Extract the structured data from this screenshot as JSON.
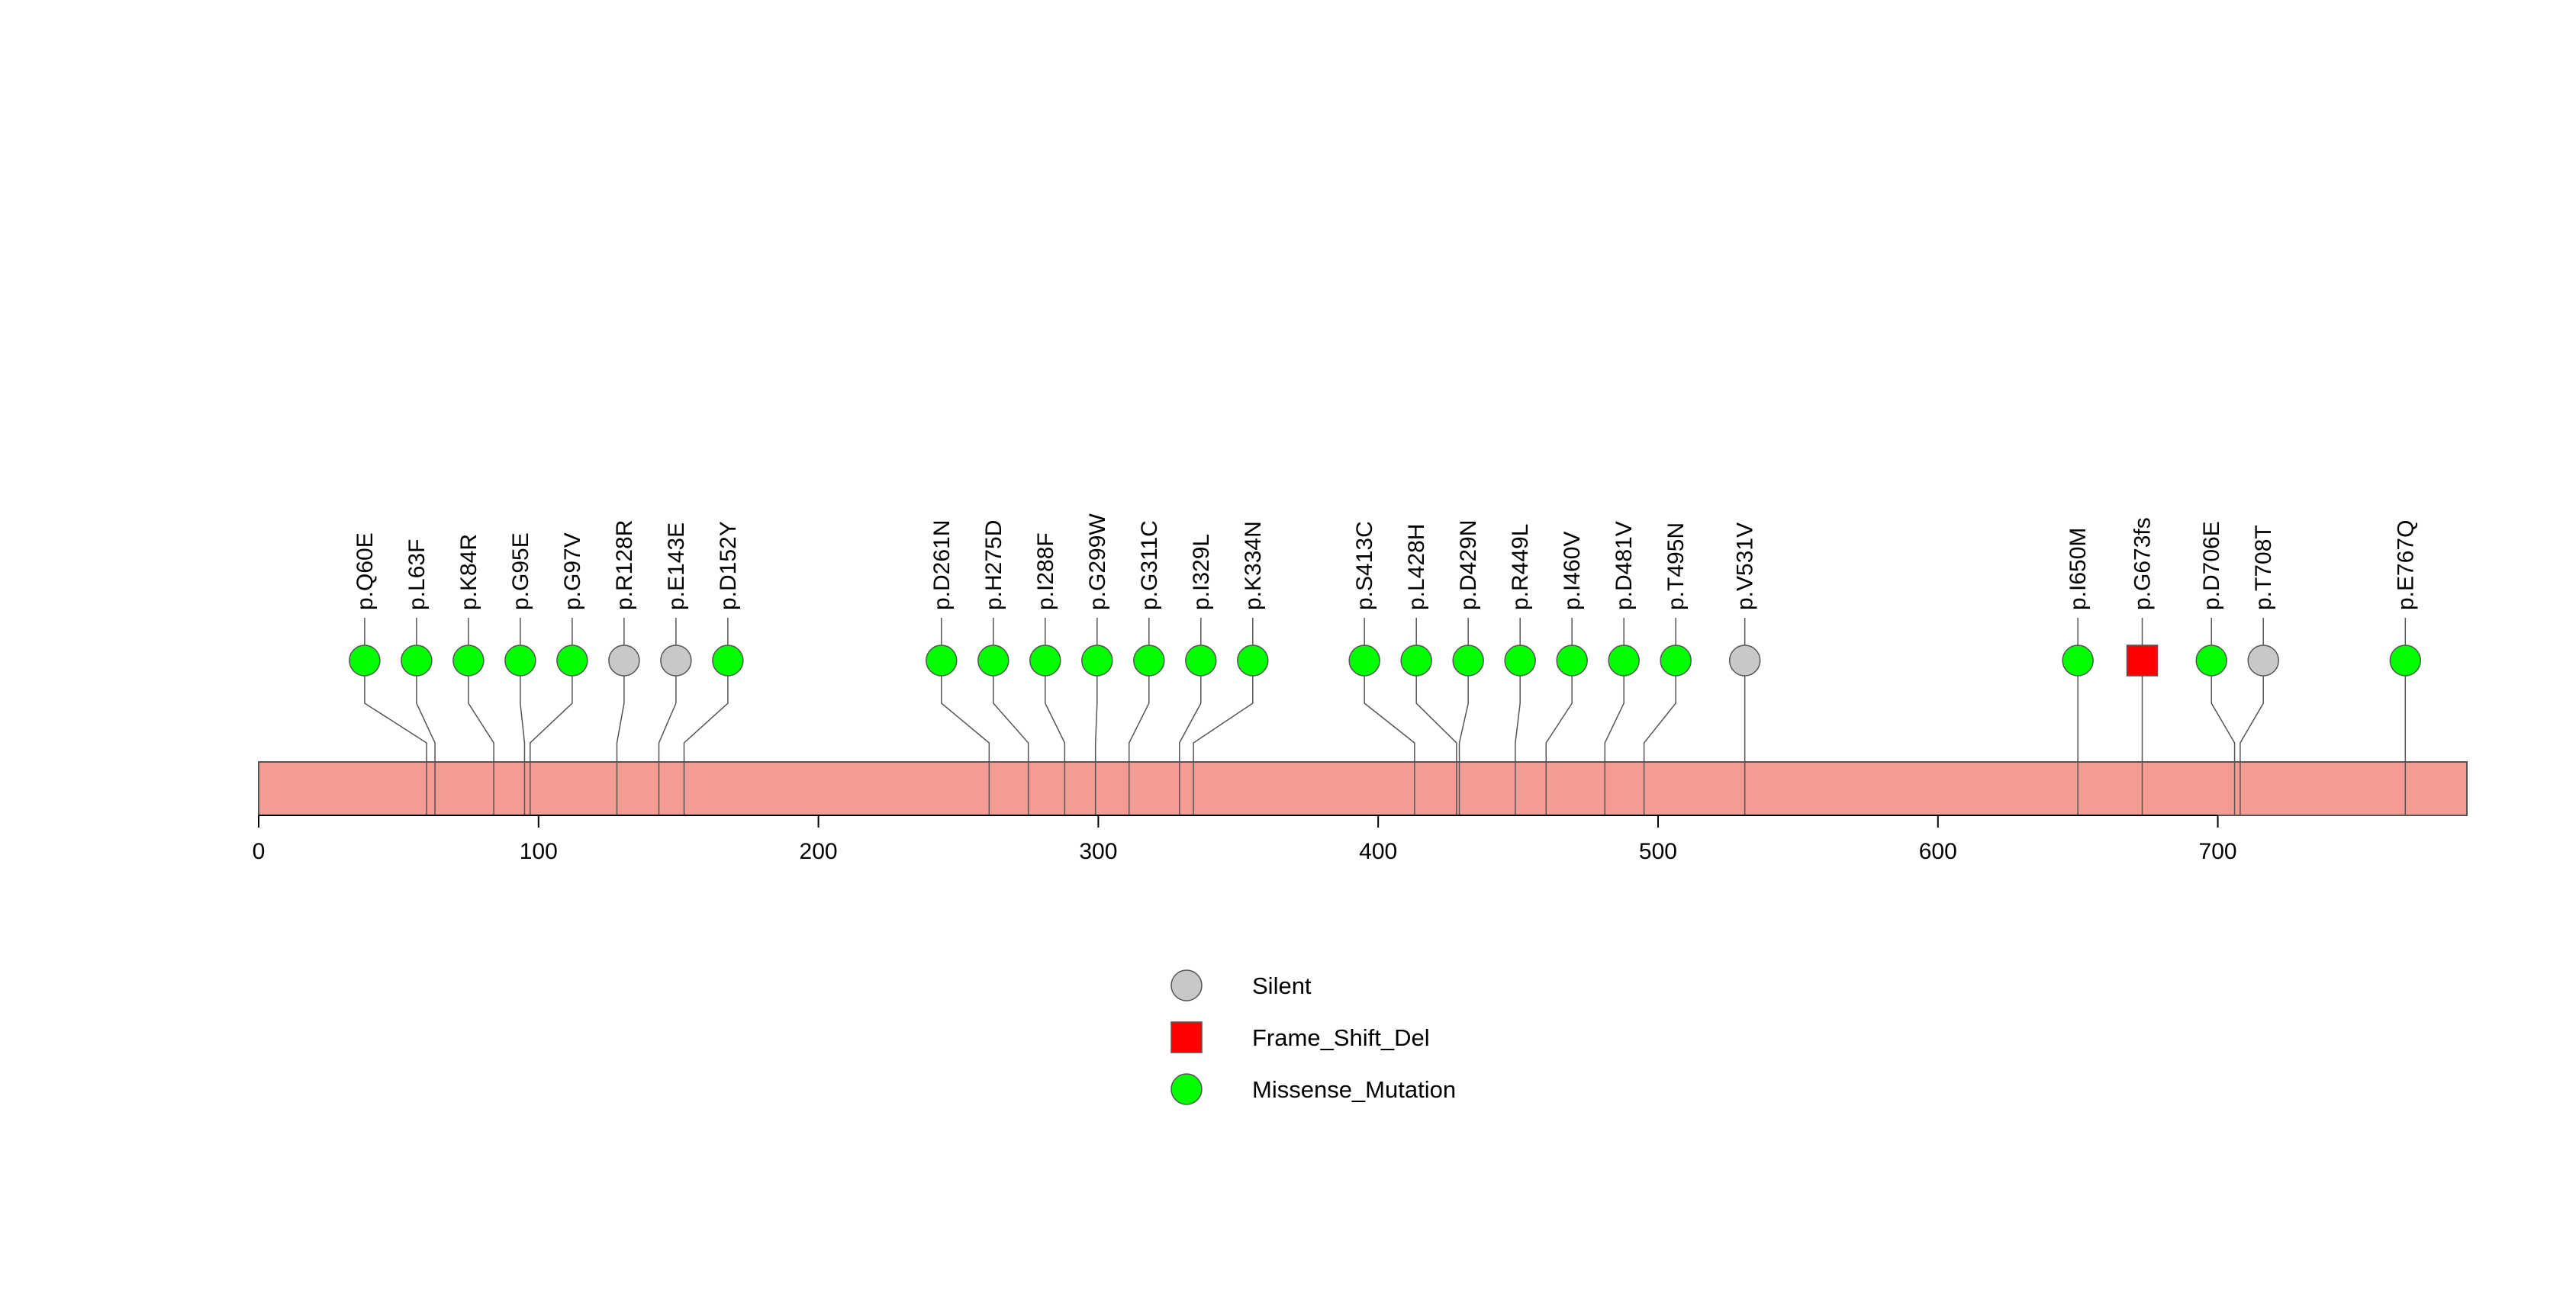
{
  "chart_data": {
    "type": "lollipop",
    "protein_length": 789,
    "xlim": [
      0,
      789
    ],
    "x_ticks": [
      0,
      100,
      200,
      300,
      400,
      500,
      600,
      700
    ],
    "mutations": [
      {
        "label": "p.Q60E",
        "position": 60,
        "type": "Missense_Mutation"
      },
      {
        "label": "p.L63F",
        "position": 63,
        "type": "Missense_Mutation"
      },
      {
        "label": "p.K84R",
        "position": 84,
        "type": "Missense_Mutation"
      },
      {
        "label": "p.G95E",
        "position": 95,
        "type": "Missense_Mutation"
      },
      {
        "label": "p.G97V",
        "position": 97,
        "type": "Missense_Mutation"
      },
      {
        "label": "p.R128R",
        "position": 128,
        "type": "Silent"
      },
      {
        "label": "p.E143E",
        "position": 143,
        "type": "Silent"
      },
      {
        "label": "p.D152Y",
        "position": 152,
        "type": "Missense_Mutation"
      },
      {
        "label": "p.D261N",
        "position": 261,
        "type": "Missense_Mutation"
      },
      {
        "label": "p.H275D",
        "position": 275,
        "type": "Missense_Mutation"
      },
      {
        "label": "p.I288F",
        "position": 288,
        "type": "Missense_Mutation"
      },
      {
        "label": "p.G299W",
        "position": 299,
        "type": "Missense_Mutation"
      },
      {
        "label": "p.G311C",
        "position": 311,
        "type": "Missense_Mutation"
      },
      {
        "label": "p.I329L",
        "position": 329,
        "type": "Missense_Mutation"
      },
      {
        "label": "p.K334N",
        "position": 334,
        "type": "Missense_Mutation"
      },
      {
        "label": "p.S413C",
        "position": 413,
        "type": "Missense_Mutation"
      },
      {
        "label": "p.L428H",
        "position": 428,
        "type": "Missense_Mutation"
      },
      {
        "label": "p.D429N",
        "position": 429,
        "type": "Missense_Mutation"
      },
      {
        "label": "p.R449L",
        "position": 449,
        "type": "Missense_Mutation"
      },
      {
        "label": "p.I460V",
        "position": 460,
        "type": "Missense_Mutation"
      },
      {
        "label": "p.D481V",
        "position": 481,
        "type": "Missense_Mutation"
      },
      {
        "label": "p.T495N",
        "position": 495,
        "type": "Missense_Mutation"
      },
      {
        "label": "p.V531V",
        "position": 531,
        "type": "Silent"
      },
      {
        "label": "p.I650M",
        "position": 650,
        "type": "Missense_Mutation"
      },
      {
        "label": "p.G673fs",
        "position": 673,
        "type": "Frame_Shift_Del"
      },
      {
        "label": "p.D706E",
        "position": 706,
        "type": "Missense_Mutation"
      },
      {
        "label": "p.T708T",
        "position": 708,
        "type": "Silent"
      },
      {
        "label": "p.E767Q",
        "position": 767,
        "type": "Missense_Mutation"
      }
    ],
    "legend": [
      {
        "label": "Silent",
        "type": "Silent"
      },
      {
        "label": "Frame_Shift_Del",
        "type": "Frame_Shift_Del"
      },
      {
        "label": "Missense_Mutation",
        "type": "Missense_Mutation"
      }
    ],
    "type_styles": {
      "Silent": {
        "shape": "circle",
        "color": "#c8c8c8"
      },
      "Frame_Shift_Del": {
        "shape": "square",
        "color": "#ff0000"
      },
      "Missense_Mutation": {
        "shape": "circle",
        "color": "#00ff00"
      }
    },
    "protein_color": "#f29c94",
    "legend_position": "bottom-center"
  }
}
